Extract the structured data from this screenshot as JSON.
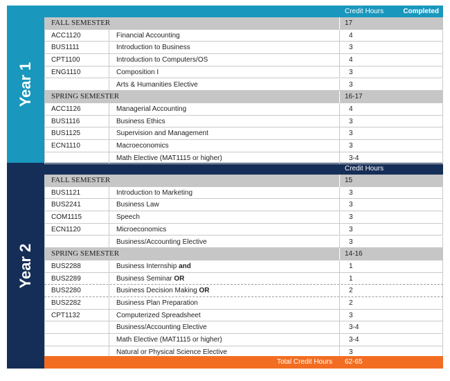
{
  "header": {
    "credit_hours": "Credit Hours",
    "completed": "Completed"
  },
  "year1": {
    "label": "Year 1",
    "fall": {
      "title": "FALL SEMESTER",
      "hours": "17",
      "courses": [
        {
          "code": "ACC1120",
          "name": "Financial Accounting",
          "hours": "4"
        },
        {
          "code": "BUS1111",
          "name": "Introduction to Business",
          "hours": "3"
        },
        {
          "code": "CPT1100",
          "name": "Introduction to Computers/OS",
          "hours": "4"
        },
        {
          "code": "ENG1110",
          "name": "Composition I",
          "hours": "3"
        },
        {
          "code": "",
          "name": "Arts & Humanities Elective",
          "hours": "3"
        }
      ]
    },
    "spring": {
      "title": "SPRING SEMESTER",
      "hours": "16-17",
      "courses": [
        {
          "code": "ACC1126",
          "name": "Managerial Accounting",
          "hours": "4"
        },
        {
          "code": "BUS1116",
          "name": "Business Ethics",
          "hours": "3"
        },
        {
          "code": "BUS1125",
          "name": "Supervision and Management",
          "hours": "3"
        },
        {
          "code": "ECN1110",
          "name": "Macroeconomics",
          "hours": "3"
        },
        {
          "code": "",
          "name": "Math Elective (MAT1115 or higher)",
          "hours": "3-4"
        }
      ]
    }
  },
  "year2": {
    "label": "Year 2",
    "credit_hours": "Credit Hours",
    "fall": {
      "title": "FALL SEMESTER",
      "hours": "15",
      "courses": [
        {
          "code": "BUS1121",
          "name": "Introduction to Marketing",
          "hours": "3"
        },
        {
          "code": "BUS2241",
          "name": "Business Law",
          "hours": "3"
        },
        {
          "code": "COM1115",
          "name": "Speech",
          "hours": "3"
        },
        {
          "code": "ECN1120",
          "name": "Microeconomics",
          "hours": "3"
        },
        {
          "code": "",
          "name": "Business/Accounting Elective",
          "hours": "3"
        }
      ]
    },
    "spring": {
      "title": "SPRING SEMESTER",
      "hours": "14-16",
      "courses": [
        {
          "code": "BUS2288",
          "name": "Business Internship",
          "kw": "and",
          "hours": "1"
        },
        {
          "code": "BUS2289",
          "name": "Business Seminar",
          "kw": "OR",
          "hours": "1"
        },
        {
          "code": "BUS2280",
          "name": "Business Decision Making",
          "kw": "OR",
          "hours": "2"
        },
        {
          "code": "BUS2282",
          "name": "Business Plan Preparation",
          "hours": "2"
        },
        {
          "code": "CPT1132",
          "name": "Computerized Spreadsheet",
          "hours": "3"
        },
        {
          "code": "",
          "name": "Business/Accounting Elective",
          "hours": "3-4"
        },
        {
          "code": "",
          "name": "Math Elective (MAT1115 or higher)",
          "hours": "3-4"
        },
        {
          "code": "",
          "name": "Natural or Physical Science Elective",
          "hours": "3"
        }
      ]
    }
  },
  "total": {
    "label": "Total Credit Hours",
    "value": "62-65"
  },
  "colors": {
    "year1": "#1997bd",
    "year2": "#152e57",
    "total": "#f26d21",
    "semester_bg": "#c6c6c6"
  }
}
